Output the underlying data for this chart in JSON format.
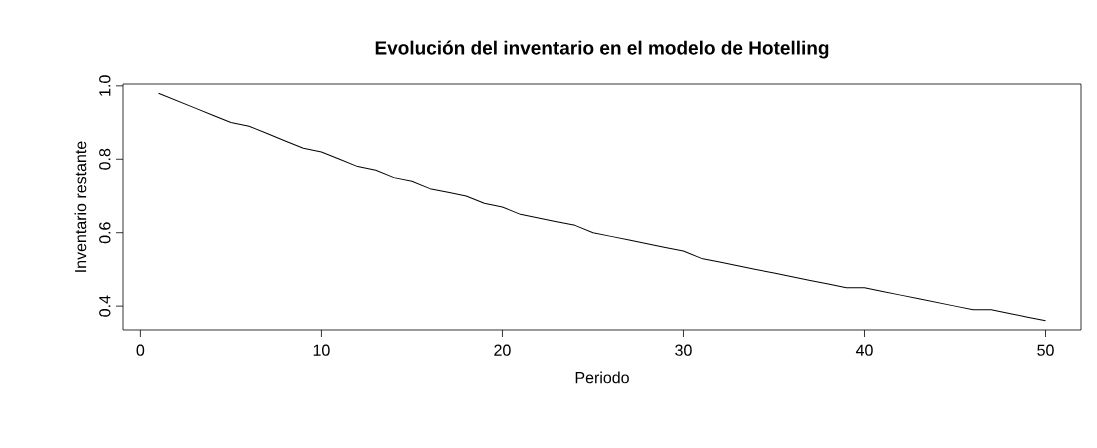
{
  "chart_data": {
    "type": "line",
    "title": "Evolución del inventario en el modelo de Hotelling",
    "xlabel": "Periodo",
    "ylabel": "Inventario restante",
    "x": [
      1,
      2,
      3,
      4,
      5,
      6,
      7,
      8,
      9,
      10,
      11,
      12,
      13,
      14,
      15,
      16,
      17,
      18,
      19,
      20,
      21,
      22,
      23,
      24,
      25,
      26,
      27,
      28,
      29,
      30,
      31,
      32,
      33,
      34,
      35,
      36,
      37,
      38,
      39,
      40,
      41,
      42,
      43,
      44,
      45,
      46,
      47,
      48,
      49,
      50
    ],
    "values": [
      0.98,
      0.96,
      0.94,
      0.92,
      0.9,
      0.89,
      0.87,
      0.85,
      0.83,
      0.82,
      0.8,
      0.78,
      0.77,
      0.75,
      0.74,
      0.72,
      0.71,
      0.7,
      0.68,
      0.67,
      0.65,
      0.64,
      0.63,
      0.62,
      0.6,
      0.59,
      0.58,
      0.57,
      0.56,
      0.55,
      0.53,
      0.52,
      0.51,
      0.5,
      0.49,
      0.48,
      0.47,
      0.46,
      0.45,
      0.45,
      0.44,
      0.43,
      0.42,
      0.41,
      0.4,
      0.39,
      0.39,
      0.38,
      0.37,
      0.36
    ],
    "color": "#000000",
    "xlim": [
      -0.96,
      51.96
    ],
    "ylim": [
      0.335,
      1.005
    ],
    "xticks": [
      0,
      10,
      20,
      30,
      40,
      50
    ],
    "yticks": [
      {
        "value": 0.4,
        "label": "0.4"
      },
      {
        "value": 0.6,
        "label": "0.6"
      },
      {
        "value": 0.8,
        "label": "0.8"
      },
      {
        "value": 1,
        "label": "1.0"
      }
    ],
    "grid": false
  }
}
